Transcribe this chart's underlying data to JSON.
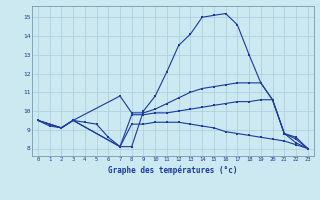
{
  "xlabel": "Graphe des températures (°c)",
  "bg_color": "#cce8f0",
  "line_color": "#1a3a9e",
  "grid_color": "#aaccdd",
  "xlim": [
    -0.5,
    23.5
  ],
  "ylim": [
    7.6,
    15.6
  ],
  "xticks": [
    0,
    1,
    2,
    3,
    4,
    5,
    6,
    7,
    8,
    9,
    10,
    11,
    12,
    13,
    14,
    15,
    16,
    17,
    18,
    19,
    20,
    21,
    22,
    23
  ],
  "yticks": [
    8,
    9,
    10,
    11,
    12,
    13,
    14,
    15
  ],
  "line1_x": [
    0,
    1,
    2,
    3,
    4,
    5,
    6,
    7,
    8,
    9,
    10,
    11,
    12,
    13,
    14,
    15,
    16,
    17,
    18,
    19,
    20,
    21,
    22,
    23
  ],
  "line1_y": [
    9.5,
    9.2,
    9.1,
    9.5,
    9.4,
    9.3,
    8.6,
    8.1,
    8.1,
    10.0,
    10.8,
    12.1,
    13.5,
    14.1,
    15.0,
    15.1,
    15.2,
    14.6,
    13.0,
    11.5,
    10.6,
    8.8,
    8.6,
    8.0
  ],
  "line2_x": [
    0,
    2,
    3,
    7,
    8,
    9,
    10,
    11,
    12,
    13,
    14,
    15,
    16,
    17,
    18,
    19,
    20,
    21,
    22,
    23
  ],
  "line2_y": [
    9.5,
    9.1,
    9.5,
    10.8,
    9.9,
    9.9,
    10.1,
    10.4,
    10.7,
    11.0,
    11.2,
    11.3,
    11.4,
    11.5,
    11.5,
    11.5,
    10.6,
    8.8,
    8.5,
    8.0
  ],
  "line3_x": [
    0,
    2,
    3,
    7,
    8,
    9,
    10,
    11,
    12,
    13,
    14,
    15,
    16,
    17,
    18,
    19,
    20,
    21,
    22,
    23
  ],
  "line3_y": [
    9.5,
    9.1,
    9.5,
    8.1,
    9.3,
    9.3,
    9.4,
    9.4,
    9.4,
    9.3,
    9.2,
    9.1,
    8.9,
    8.8,
    8.7,
    8.6,
    8.5,
    8.4,
    8.2,
    8.0
  ],
  "line4_x": [
    0,
    2,
    3,
    7,
    8,
    9,
    10,
    11,
    12,
    13,
    14,
    15,
    16,
    17,
    18,
    19,
    20,
    21,
    22,
    23
  ],
  "line4_y": [
    9.5,
    9.1,
    9.5,
    8.1,
    9.8,
    9.8,
    9.9,
    9.9,
    10.0,
    10.1,
    10.2,
    10.3,
    10.4,
    10.5,
    10.5,
    10.6,
    10.6,
    8.8,
    8.3,
    8.0
  ]
}
